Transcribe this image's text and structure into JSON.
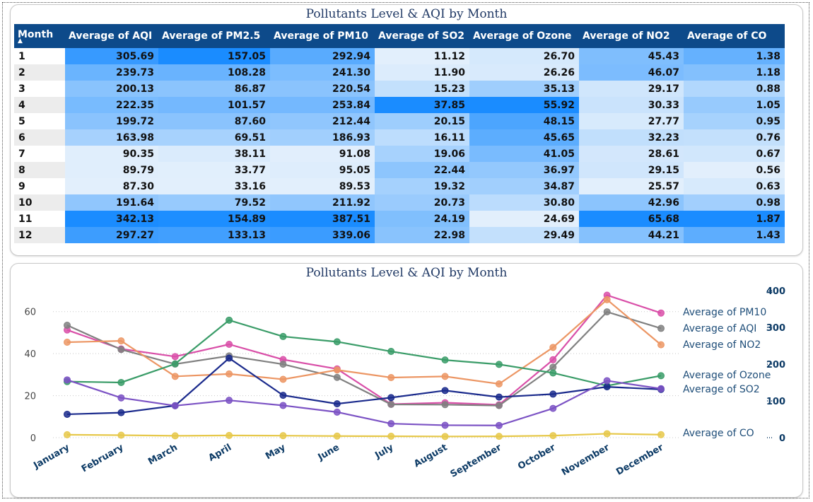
{
  "table": {
    "title": "Pollutants Level & AQI by Month",
    "sort_indicator": "▲",
    "columns": [
      "Month",
      "Average of AQI",
      "Average of PM2.5",
      "Average of PM10",
      "Average of SO2",
      "Average of Ozone",
      "Average of NO2",
      "Average of CO"
    ],
    "rows": [
      [
        "1",
        "305.69",
        "157.05",
        "292.94",
        "11.12",
        "26.70",
        "45.43",
        "1.38"
      ],
      [
        "2",
        "239.73",
        "108.28",
        "241.30",
        "11.90",
        "26.26",
        "46.07",
        "1.18"
      ],
      [
        "3",
        "200.13",
        "86.87",
        "220.54",
        "15.23",
        "35.13",
        "29.17",
        "0.88"
      ],
      [
        "4",
        "222.35",
        "101.57",
        "253.84",
        "37.85",
        "55.92",
        "30.33",
        "1.05"
      ],
      [
        "5",
        "199.72",
        "87.60",
        "212.44",
        "20.15",
        "48.15",
        "27.77",
        "0.95"
      ],
      [
        "6",
        "163.98",
        "69.51",
        "186.93",
        "16.11",
        "45.65",
        "32.23",
        "0.76"
      ],
      [
        "7",
        "90.35",
        "38.11",
        "91.08",
        "19.06",
        "41.05",
        "28.61",
        "0.67"
      ],
      [
        "8",
        "89.79",
        "33.77",
        "95.05",
        "22.44",
        "36.97",
        "29.15",
        "0.56"
      ],
      [
        "9",
        "87.30",
        "33.16",
        "89.53",
        "19.32",
        "34.87",
        "25.57",
        "0.63"
      ],
      [
        "10",
        "191.64",
        "79.52",
        "211.92",
        "20.73",
        "30.80",
        "42.96",
        "0.98"
      ],
      [
        "11",
        "342.13",
        "154.89",
        "387.51",
        "24.19",
        "24.69",
        "65.68",
        "1.87"
      ],
      [
        "12",
        "297.27",
        "133.13",
        "339.06",
        "22.98",
        "29.49",
        "44.21",
        "1.43"
      ]
    ],
    "color_scale": {
      "low": "#e2effc",
      "high": "#1a8cff"
    }
  },
  "chart_data": {
    "type": "line",
    "title": "Pollutants Level & AQI by Month",
    "categories": [
      "January",
      "February",
      "March",
      "April",
      "May",
      "June",
      "July",
      "August",
      "September",
      "October",
      "November",
      "December"
    ],
    "y_left": {
      "ylim": [
        0,
        70
      ],
      "ticks": [
        0,
        20,
        40,
        60
      ]
    },
    "y_right": {
      "ylim": [
        0,
        400
      ],
      "ticks": [
        0,
        100,
        200,
        300,
        400
      ]
    },
    "grid": true,
    "legend": "inline-right",
    "series": [
      {
        "name": "Average of PM10",
        "axis": "right",
        "color": "#d94fa8",
        "values": [
          292.94,
          241.3,
          220.54,
          253.84,
          212.44,
          186.93,
          91.08,
          95.05,
          89.53,
          211.92,
          387.51,
          339.06
        ]
      },
      {
        "name": "Average of AQI",
        "axis": "right",
        "color": "#808080",
        "values": [
          305.69,
          239.73,
          200.13,
          222.35,
          199.72,
          163.98,
          90.35,
          89.79,
          87.3,
          191.64,
          342.13,
          297.27
        ]
      },
      {
        "name": "Average of NO2",
        "axis": "left",
        "color": "#ec9664",
        "values": [
          45.43,
          46.07,
          29.17,
          30.33,
          27.77,
          32.23,
          28.61,
          29.15,
          25.57,
          42.96,
          65.68,
          44.21
        ]
      },
      {
        "name": "Average of Ozone",
        "axis": "left",
        "color": "#3a9c68",
        "values": [
          26.7,
          26.26,
          35.13,
          55.92,
          48.15,
          45.65,
          41.05,
          36.97,
          34.87,
          30.8,
          24.69,
          29.49
        ]
      },
      {
        "name": "Average of SO2",
        "axis": "left",
        "color": "#1a2a8c",
        "values": [
          11.12,
          11.9,
          15.23,
          37.85,
          20.15,
          16.11,
          19.06,
          22.44,
          19.32,
          20.73,
          24.19,
          22.98
        ]
      },
      {
        "name": "",
        "axis": "right",
        "color": "#7b52c4",
        "values": [
          157.05,
          108.28,
          86.87,
          101.57,
          87.6,
          69.51,
          38.11,
          33.77,
          33.16,
          79.52,
          154.89,
          133.13
        ]
      },
      {
        "name": "Average of CO",
        "axis": "left",
        "color": "#e6c84a",
        "values": [
          1.38,
          1.18,
          0.88,
          1.05,
          0.95,
          0.76,
          0.67,
          0.56,
          0.63,
          0.98,
          1.87,
          1.43
        ]
      }
    ]
  }
}
